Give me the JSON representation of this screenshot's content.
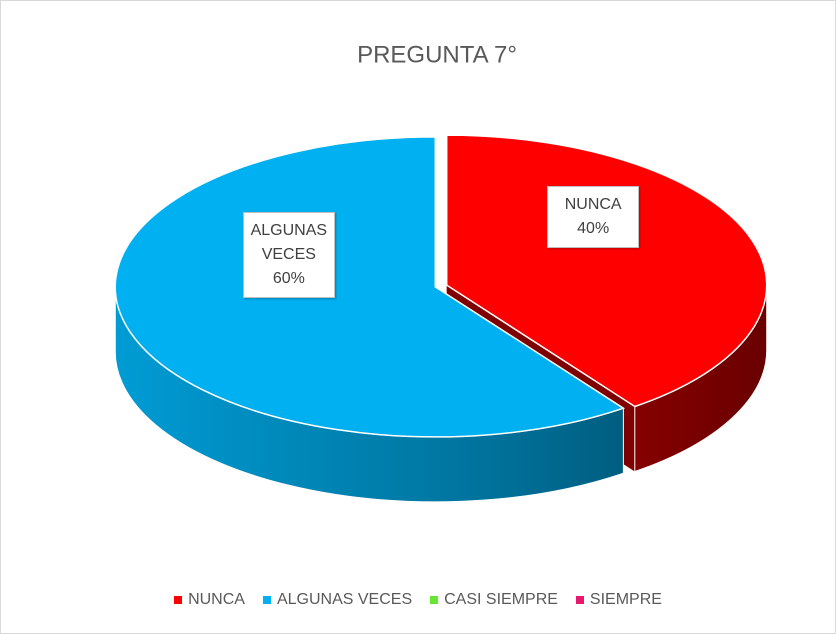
{
  "chart_data": {
    "type": "pie3d",
    "title": "PREGUNTA 7°",
    "categories": [
      "NUNCA",
      "ALGUNAS VECES",
      "CASI SIEMPRE",
      "SIEMPRE"
    ],
    "values": [
      40,
      60,
      0,
      0
    ],
    "value_labels": [
      "40%",
      "60%",
      null,
      null
    ],
    "colors": [
      "#ff0000",
      "#00b0f0",
      "#66e633",
      "#e6196e"
    ],
    "legend": "bottom"
  }
}
